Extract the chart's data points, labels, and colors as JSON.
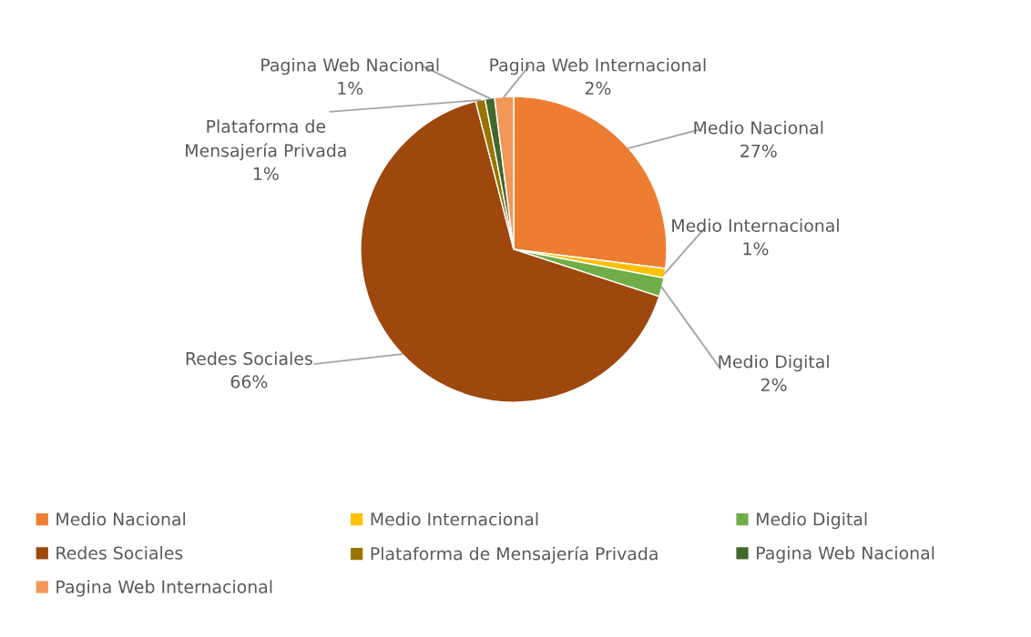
{
  "chart_data": {
    "type": "pie",
    "categories": [
      "Medio Nacional",
      "Medio Internacional",
      "Medio Digital",
      "Redes Sociales",
      "Plataforma de Mensajería Privada",
      "Pagina Web Nacional",
      "Pagina Web Internacional"
    ],
    "values": [
      27,
      1,
      2,
      66,
      1,
      1,
      2
    ],
    "colors": [
      "#ed7d31",
      "#ffc000",
      "#70ad47",
      "#9e480e",
      "#997300",
      "#43682b",
      "#f1975a"
    ],
    "value_labels": [
      "27%",
      "1%",
      "2%",
      "66%",
      "1%",
      "1%",
      "2%"
    ],
    "legend": "bottom"
  }
}
